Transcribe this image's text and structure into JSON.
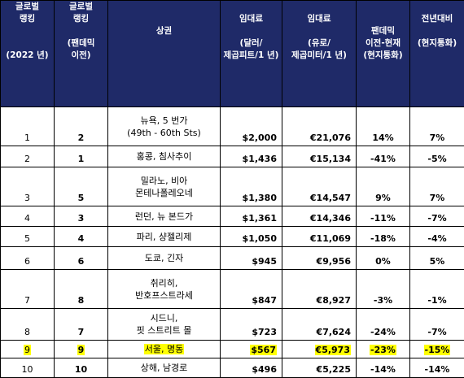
{
  "headers": [
    {
      "lines": [
        "글로벌",
        "랭킹",
        "",
        "",
        "(2022 년)"
      ]
    },
    {
      "lines": [
        "글로벌",
        "랭킹",
        "",
        "(팬데믹",
        "이전)"
      ]
    },
    {
      "lines": [
        "",
        "",
        "상권",
        "",
        ""
      ]
    },
    {
      "lines": [
        "",
        "임대료",
        "",
        "(달러/",
        "제곱피트/1 년)"
      ]
    },
    {
      "lines": [
        "",
        "임대료",
        "",
        "(유로/",
        "제곱미터/1 년)"
      ]
    },
    {
      "lines": [
        "",
        "",
        "팬데믹",
        "이전-현재",
        "(현지통화)"
      ]
    },
    {
      "lines": [
        "",
        "전년대비",
        "",
        "(현지통화)",
        ""
      ]
    }
  ],
  "rows": [
    {
      "rank": "1",
      "prev": "2",
      "location": "뉴욕, 5 번가\n(49th - 60th Sts)",
      "usd": "$2,000",
      "eur": "€21,076",
      "pandemic": "14%",
      "yoy": "7%",
      "highlight": false
    },
    {
      "rank": "2",
      "prev": "1",
      "location": "홍콩, 침사추이",
      "usd": "$1,436",
      "eur": "€15,134",
      "pandemic": "-41%",
      "yoy": "-5%",
      "highlight": false
    },
    {
      "rank": "3",
      "prev": "5",
      "location": "밀라노, 비아\n몬테나폴레오네",
      "usd": "$1,380",
      "eur": "€14,547",
      "pandemic": "9%",
      "yoy": "7%",
      "highlight": false
    },
    {
      "rank": "4",
      "prev": "3",
      "location": "런던, 뉴 본드가",
      "usd": "$1,361",
      "eur": "€14,346",
      "pandemic": "-11%",
      "yoy": "-7%",
      "highlight": false
    },
    {
      "rank": "5",
      "prev": "4",
      "location": "파리, 샹젤리제",
      "usd": "$1,050",
      "eur": "€11,069",
      "pandemic": "-18%",
      "yoy": "-4%",
      "highlight": false
    },
    {
      "rank": "6",
      "prev": "6",
      "location": "도쿄, 긴자",
      "usd": "$945",
      "eur": "€9,956",
      "pandemic": "0%",
      "yoy": "5%",
      "highlight": false
    },
    {
      "rank": "7",
      "prev": "8",
      "location": "취리히,\n반호프스트라세",
      "usd": "$847",
      "eur": "€8,927",
      "pandemic": "-3%",
      "yoy": "-1%",
      "highlight": false
    },
    {
      "rank": "8",
      "prev": "7",
      "location": "시드니,\n핏 스트리트 몰",
      "usd": "$723",
      "eur": "€7,624",
      "pandemic": "-24%",
      "yoy": "-7%",
      "highlight": false
    },
    {
      "rank": "9",
      "prev": "9",
      "location": "서울, 명동",
      "usd": "$567",
      "eur": "€5,973",
      "pandemic": "-23%",
      "yoy": "-15%",
      "highlight": true
    },
    {
      "rank": "10",
      "prev": "10",
      "location": "상해, 남경로",
      "usd": "$496",
      "eur": "€5,225",
      "pandemic": "-14%",
      "yoy": "-14%",
      "highlight": false
    }
  ]
}
